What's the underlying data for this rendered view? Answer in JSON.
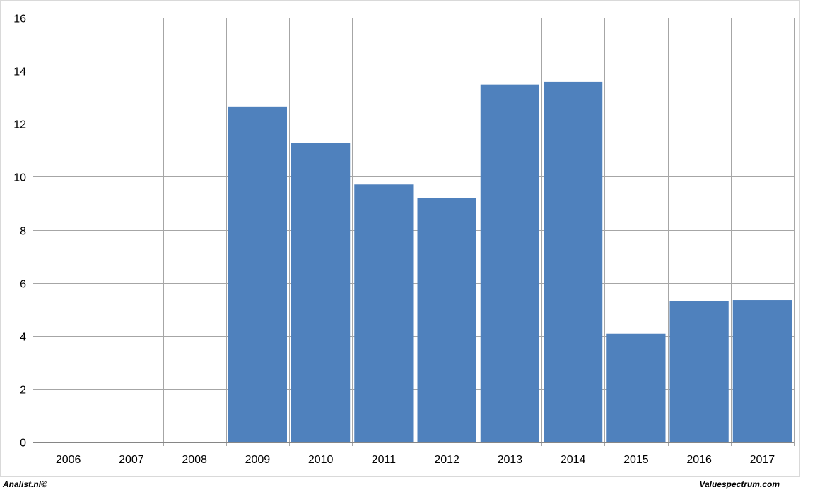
{
  "chart_data": {
    "type": "bar",
    "categories": [
      "2006",
      "2007",
      "2008",
      "2009",
      "2010",
      "2011",
      "2012",
      "2013",
      "2014",
      "2015",
      "2016",
      "2017"
    ],
    "values": [
      null,
      null,
      null,
      12.65,
      11.27,
      9.71,
      9.2,
      13.48,
      13.58,
      4.08,
      5.32,
      5.35
    ],
    "title": "",
    "xlabel": "",
    "ylabel": "",
    "ylim": [
      0,
      16
    ],
    "yticks": [
      "0",
      "2",
      "4",
      "6",
      "8",
      "10",
      "12",
      "14",
      "16"
    ],
    "grid": true,
    "bar_color": "#4F81BD",
    "grid_color": "#A6A6A6"
  },
  "footer": {
    "left_text": "Analist.nl©",
    "right_text": "Valuespectrum.com"
  }
}
